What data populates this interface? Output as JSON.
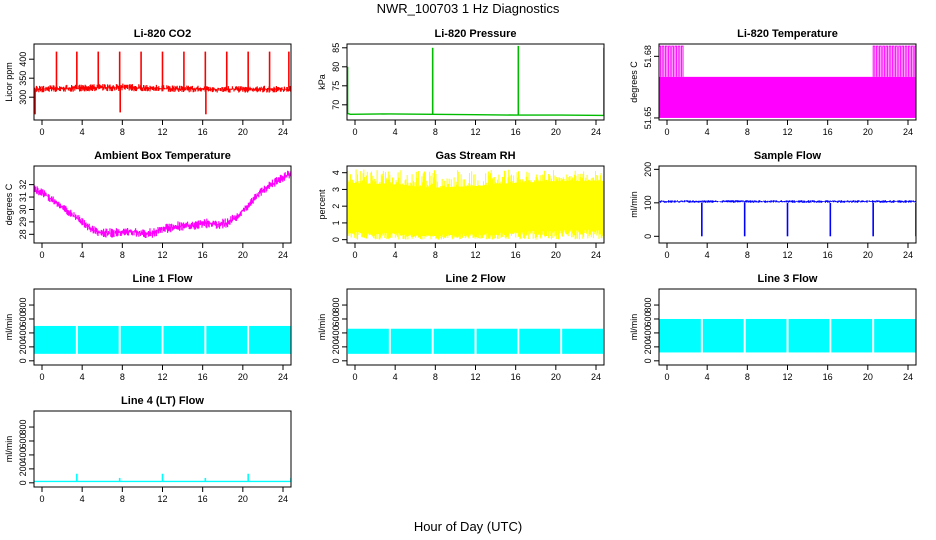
{
  "figure": {
    "title": "NWR_100703  1 Hz Diagnostics",
    "xlabel": "Hour of Day (UTC)"
  },
  "chart_data": [
    {
      "type": "line",
      "title": "Li-820 CO2",
      "ylabel": "Licor ppm",
      "color": "#ff0000",
      "xlim": [
        0,
        24
      ],
      "xticks": [
        0,
        4,
        8,
        12,
        16,
        20,
        24
      ],
      "ylim": [
        240,
        440
      ],
      "yticks": [
        300,
        350,
        400
      ],
      "series": [
        {
          "kind": "band",
          "x": [
            0,
            4,
            8,
            12,
            16,
            20,
            24
          ],
          "low": [
            312,
            314,
            316,
            314,
            312,
            312,
            312
          ],
          "high": [
            330,
            333,
            336,
            332,
            330,
            330,
            330
          ]
        }
      ],
      "spikes": [
        {
          "x": 0.1,
          "y0": 320,
          "y1": 255
        },
        {
          "x": 2.1,
          "y0": 325,
          "y1": 420
        },
        {
          "x": 4.0,
          "y0": 325,
          "y1": 420
        },
        {
          "x": 6.0,
          "y0": 325,
          "y1": 420
        },
        {
          "x": 8.0,
          "y0": 325,
          "y1": 420
        },
        {
          "x": 8.05,
          "y0": 325,
          "y1": 260
        },
        {
          "x": 10.0,
          "y0": 325,
          "y1": 420
        },
        {
          "x": 12.0,
          "y0": 325,
          "y1": 420
        },
        {
          "x": 14.0,
          "y0": 325,
          "y1": 420
        },
        {
          "x": 16.0,
          "y0": 325,
          "y1": 420
        },
        {
          "x": 16.05,
          "y0": 325,
          "y1": 255
        },
        {
          "x": 18.0,
          "y0": 325,
          "y1": 420
        },
        {
          "x": 20.0,
          "y0": 325,
          "y1": 420
        },
        {
          "x": 22.0,
          "y0": 325,
          "y1": 420
        },
        {
          "x": 23.8,
          "y0": 325,
          "y1": 420
        }
      ]
    },
    {
      "type": "line",
      "title": "Li-820 Pressure",
      "ylabel": "kPa",
      "color": "#00bb00",
      "xlim": [
        0,
        24
      ],
      "xticks": [
        0,
        4,
        8,
        12,
        16,
        20,
        24
      ],
      "ylim": [
        66,
        86
      ],
      "yticks": [
        70,
        75,
        80,
        85
      ],
      "series": [
        {
          "kind": "line",
          "x": [
            0,
            0.3,
            4,
            8,
            12,
            16,
            20,
            24
          ],
          "y": [
            67.8,
            67.5,
            67.6,
            67.5,
            67.4,
            67.3,
            67.3,
            67.2
          ]
        }
      ],
      "spikes": [
        {
          "x": 0.05,
          "y0": 67.8,
          "y1": 80
        },
        {
          "x": 8.0,
          "y0": 67.5,
          "y1": 85
        },
        {
          "x": 16.0,
          "y0": 67.3,
          "y1": 85.5
        },
        {
          "x": 24.0,
          "y0": 67.2,
          "y1": 85
        }
      ]
    },
    {
      "type": "area",
      "title": "Li-820 Temperature",
      "ylabel": "degrees C",
      "color": "#ff00ff",
      "xlim": [
        0,
        24
      ],
      "xticks": [
        0,
        4,
        8,
        12,
        16,
        20,
        24
      ],
      "ylim": [
        51.649,
        51.686
      ],
      "yticks": [
        51.65,
        51.68
      ],
      "yticklabels": [
        "51.65",
        "51.68"
      ],
      "series": [
        {
          "kind": "fill",
          "x0": 0,
          "x1": 24,
          "low": 51.65,
          "high": 51.67
        }
      ],
      "spike_ranges": [
        {
          "x0": 0,
          "x1": 2.2,
          "y": 51.685
        },
        {
          "x0": 20,
          "x1": 24,
          "y": 51.685
        }
      ]
    },
    {
      "type": "line",
      "title": "Ambient Box Temperature",
      "ylabel": "degrees C",
      "color": "#ff00ff",
      "xlim": [
        0,
        24
      ],
      "xticks": [
        0,
        4,
        8,
        12,
        16,
        20,
        24
      ],
      "ylim": [
        27.3,
        33.5
      ],
      "yticks": [
        28,
        29,
        30,
        31,
        32
      ],
      "series": [
        {
          "kind": "band",
          "x": [
            0,
            1,
            2,
            3,
            4,
            5,
            6,
            7,
            8,
            9,
            10,
            11,
            12,
            13,
            14,
            15,
            16,
            17,
            18,
            19,
            20,
            21,
            22,
            23,
            24
          ],
          "low": [
            31.3,
            30.9,
            30.2,
            29.6,
            29.0,
            28.3,
            27.8,
            27.7,
            27.8,
            27.9,
            27.7,
            27.7,
            28.0,
            28.2,
            28.3,
            28.3,
            28.5,
            28.4,
            28.5,
            29.1,
            30.0,
            30.9,
            31.6,
            32.0,
            32.6
          ],
          "high": [
            32.0,
            31.6,
            30.9,
            30.3,
            29.7,
            29.0,
            28.5,
            28.5,
            28.6,
            28.6,
            28.4,
            28.5,
            28.8,
            29.0,
            29.1,
            29.1,
            29.3,
            29.2,
            29.3,
            29.8,
            30.7,
            31.6,
            32.3,
            32.8,
            33.3
          ]
        }
      ],
      "spikes": []
    },
    {
      "type": "area",
      "title": "Gas Stream RH",
      "ylabel": "percent",
      "color": "#ffff00",
      "xlim": [
        0,
        24
      ],
      "xticks": [
        0,
        4,
        8,
        12,
        16,
        20,
        24
      ],
      "ylim": [
        -0.2,
        4.4
      ],
      "yticks": [
        0,
        1,
        2,
        3,
        4
      ],
      "series": [
        {
          "kind": "noise",
          "x": [
            0,
            4,
            8,
            12,
            16,
            20,
            24
          ],
          "low": [
            0.5,
            0.4,
            0.3,
            0.4,
            0.5,
            0.6,
            0.6
          ],
          "high": [
            3.4,
            3.3,
            3.1,
            3.2,
            3.4,
            3.5,
            3.5
          ],
          "min": 0.0,
          "max": 4.2
        }
      ],
      "spikes": []
    },
    {
      "type": "line",
      "title": "Sample Flow",
      "ylabel": "ml/min",
      "color": "#0000ff",
      "xlim": [
        0,
        24
      ],
      "xticks": [
        0,
        4,
        8,
        12,
        16,
        20,
        24
      ],
      "ylim": [
        -20,
        210
      ],
      "yticks": [
        0,
        100,
        200
      ],
      "series": [
        {
          "kind": "band",
          "x": [
            0,
            24
          ],
          "low": [
            100,
            100
          ],
          "high": [
            108,
            108
          ]
        }
      ],
      "spikes": [
        {
          "x": 4.0,
          "y0": 100,
          "y1": 0
        },
        {
          "x": 8.0,
          "y0": 100,
          "y1": 0
        },
        {
          "x": 12.0,
          "y0": 100,
          "y1": 0
        },
        {
          "x": 16.0,
          "y0": 100,
          "y1": 0
        },
        {
          "x": 20.0,
          "y0": 100,
          "y1": 0
        },
        {
          "x": 24.0,
          "y0": 100,
          "y1": 0
        }
      ]
    },
    {
      "type": "area",
      "title": "Line 1 Flow",
      "ylabel": "ml/min",
      "color": "#00ffff",
      "xlim": [
        0,
        24
      ],
      "xticks": [
        0,
        4,
        8,
        12,
        16,
        20,
        24
      ],
      "ylim": [
        -60,
        1030
      ],
      "yticks": [
        0,
        200,
        400,
        600,
        800
      ],
      "series": [
        {
          "kind": "fill",
          "x0": 0,
          "x1": 24,
          "low": 100,
          "high": 500
        }
      ],
      "gaps": [
        4,
        8,
        12,
        16,
        20
      ]
    },
    {
      "type": "area",
      "title": "Line 2 Flow",
      "ylabel": "ml/min",
      "color": "#00ffff",
      "xlim": [
        0,
        24
      ],
      "xticks": [
        0,
        4,
        8,
        12,
        16,
        20,
        24
      ],
      "ylim": [
        -60,
        1030
      ],
      "yticks": [
        0,
        200,
        400,
        600,
        800
      ],
      "series": [
        {
          "kind": "fill",
          "x0": 0,
          "x1": 24,
          "low": 100,
          "high": 460
        }
      ],
      "gaps": [
        0,
        4,
        8,
        12,
        16,
        20,
        24
      ]
    },
    {
      "type": "area",
      "title": "Line 3 Flow",
      "ylabel": "ml/min",
      "color": "#00ffff",
      "xlim": [
        0,
        24
      ],
      "xticks": [
        0,
        4,
        8,
        12,
        16,
        20,
        24
      ],
      "ylim": [
        -60,
        1030
      ],
      "yticks": [
        0,
        200,
        400,
        600,
        800
      ],
      "series": [
        {
          "kind": "fill",
          "x0": 0,
          "x1": 24,
          "low": 120,
          "high": 600
        }
      ],
      "gaps": [
        4,
        8,
        12,
        16,
        20
      ]
    },
    {
      "type": "line",
      "title": "Line 4 (LT) Flow",
      "ylabel": "ml/min",
      "color": "#00ffff",
      "xlim": [
        0,
        24
      ],
      "xticks": [
        0,
        4,
        8,
        12,
        16,
        20,
        24
      ],
      "ylim": [
        -60,
        1030
      ],
      "yticks": [
        0,
        200,
        400,
        600,
        800
      ],
      "series": [
        {
          "kind": "line",
          "x": [
            0,
            24
          ],
          "y": [
            20,
            20
          ]
        }
      ],
      "spikes": [
        {
          "x": 4.0,
          "y0": 20,
          "y1": 130
        },
        {
          "x": 8.0,
          "y0": 20,
          "y1": 70
        },
        {
          "x": 12.0,
          "y0": 20,
          "y1": 130
        },
        {
          "x": 16.0,
          "y0": 20,
          "y1": 70
        },
        {
          "x": 20.0,
          "y0": 20,
          "y1": 130
        },
        {
          "x": 24.0,
          "y0": 20,
          "y1": 70
        }
      ]
    }
  ]
}
